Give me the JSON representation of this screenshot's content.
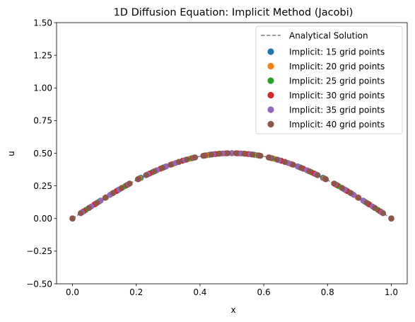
{
  "chart_data": {
    "type": "scatter",
    "title": "1D Diffusion Equation: Implicit Method (Jacobi)",
    "xlabel": "x",
    "ylabel": "u",
    "xlim": [
      -0.05,
      1.05
    ],
    "ylim": [
      -0.5,
      1.5
    ],
    "x_ticks": [
      0.0,
      0.2,
      0.4,
      0.6,
      0.8,
      1.0
    ],
    "x_tick_labels": [
      "0.0",
      "0.2",
      "0.4",
      "0.6",
      "0.8",
      "1.0"
    ],
    "y_ticks": [
      -0.5,
      -0.25,
      0.0,
      0.25,
      0.5,
      0.75,
      1.0,
      1.25,
      1.5
    ],
    "y_tick_labels": [
      "−0.50",
      "−0.25",
      "0.00",
      "0.25",
      "0.50",
      "0.75",
      "1.00",
      "1.25",
      "1.50"
    ],
    "grid": false,
    "legend_position": "top-right",
    "analytical": {
      "name": "Analytical Solution",
      "style": "dashed",
      "color": "#808080",
      "formula": "u = 0.5 * sin(pi * x)"
    },
    "series": [
      {
        "name": "Implicit: 15 grid points",
        "color": "#1f77b4",
        "n": 15
      },
      {
        "name": "Implicit: 20 grid points",
        "color": "#ff7f0e",
        "n": 20
      },
      {
        "name": "Implicit: 25 grid points",
        "color": "#2ca02c",
        "n": 25
      },
      {
        "name": "Implicit: 30 grid points",
        "color": "#d62728",
        "n": 30
      },
      {
        "name": "Implicit: 35 grid points",
        "color": "#9467bd",
        "n": 35
      },
      {
        "name": "Implicit: 40 grid points",
        "color": "#8c564b",
        "n": 40
      }
    ]
  }
}
